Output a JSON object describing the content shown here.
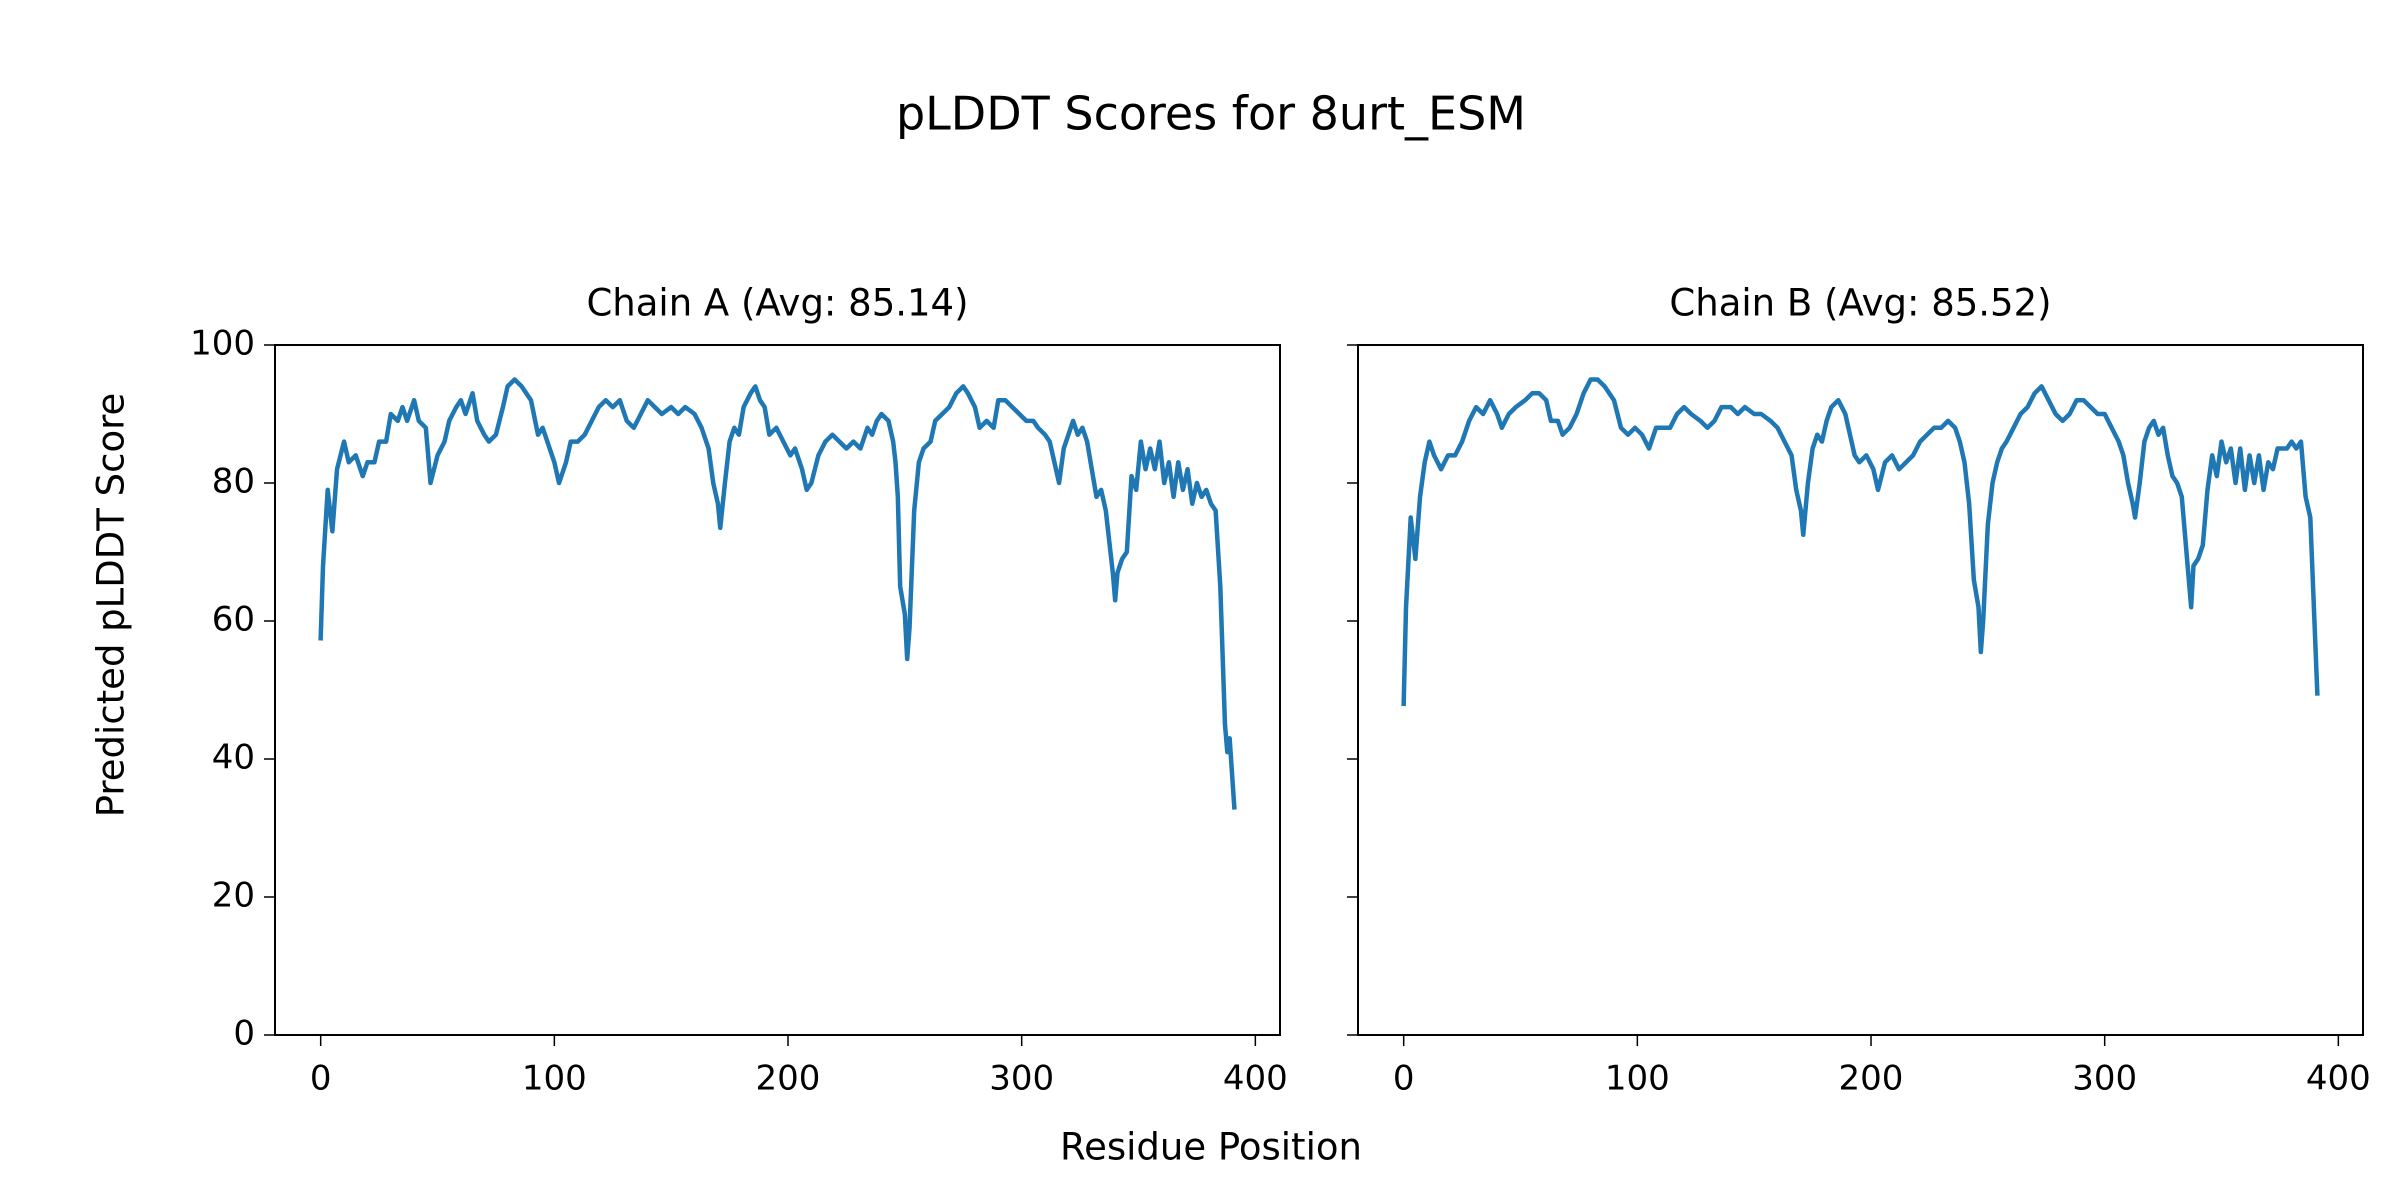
{
  "title": "pLDDT Scores for 8urt_ESM",
  "xlabel": "Residue Position",
  "ylabel": "Predicted pLDDT Score",
  "chart_data": [
    {
      "type": "line",
      "title": "Chain A (Avg: 85.14)",
      "color": "#1f77b4",
      "xlim": [
        -19.55,
        410.55
      ],
      "ylim": [
        0,
        100
      ],
      "xticks": [
        0,
        100,
        200,
        300,
        400
      ],
      "yticks": [
        0,
        20,
        40,
        60,
        80,
        100
      ],
      "ytick_labels": true,
      "x": [
        0,
        1,
        3,
        5,
        7,
        10,
        12,
        15,
        18,
        20,
        23,
        25,
        28,
        30,
        33,
        35,
        37,
        40,
        42,
        45,
        47,
        50,
        53,
        55,
        58,
        60,
        62,
        65,
        67,
        70,
        72,
        75,
        78,
        80,
        83,
        86,
        90,
        93,
        95,
        98,
        100,
        102,
        105,
        107,
        110,
        113,
        116,
        119,
        122,
        125,
        128,
        131,
        134,
        137,
        140,
        143,
        146,
        150,
        153,
        156,
        160,
        163,
        166,
        168,
        170,
        171,
        173,
        175,
        177,
        179,
        181,
        184,
        186,
        188,
        190,
        192,
        195,
        198,
        201,
        203,
        206,
        208,
        210,
        213,
        216,
        219,
        222,
        225,
        228,
        231,
        234,
        236,
        238,
        240,
        243,
        245,
        246,
        247,
        248,
        250,
        251,
        252,
        254,
        256,
        258,
        261,
        263,
        266,
        269,
        272,
        275,
        277,
        280,
        282,
        285,
        288,
        290,
        293,
        296,
        299,
        302,
        305,
        307,
        310,
        312,
        314,
        316,
        318,
        320,
        322,
        324,
        326,
        328,
        330,
        332,
        334,
        336,
        338,
        339,
        340,
        341,
        343,
        345,
        347,
        349,
        351,
        353,
        355,
        357,
        359,
        361,
        363,
        365,
        367,
        369,
        371,
        373,
        375,
        377,
        379,
        381,
        383,
        385,
        386,
        387,
        388,
        389,
        390,
        391
      ],
      "values": [
        57.5,
        68,
        79,
        73,
        82,
        86,
        83,
        84,
        81,
        83,
        83,
        86,
        86,
        90,
        89,
        91,
        89,
        92,
        89,
        88,
        80,
        84,
        86,
        89,
        91,
        92,
        90,
        93,
        89,
        87,
        86,
        87,
        91,
        94,
        95,
        94,
        92,
        87,
        88,
        85,
        83,
        80,
        83,
        86,
        86,
        87,
        89,
        91,
        92,
        91,
        92,
        89,
        88,
        90,
        92,
        91,
        90,
        91,
        90,
        91,
        90,
        88,
        85,
        80,
        77,
        73.5,
        80,
        86,
        88,
        87,
        91,
        93,
        94,
        92,
        91,
        87,
        88,
        86,
        84,
        85,
        82,
        79,
        80,
        84,
        86,
        87,
        86,
        85,
        86,
        85,
        88,
        87,
        89,
        90,
        89,
        86,
        83,
        78,
        65,
        61,
        54.5,
        59,
        76,
        83,
        85,
        86,
        89,
        90,
        91,
        93,
        94,
        93,
        91,
        88,
        89,
        88,
        92,
        92,
        91,
        90,
        89,
        89,
        88,
        87,
        86,
        83,
        80,
        85,
        87,
        89,
        87,
        88,
        86,
        82,
        78,
        79,
        76,
        70,
        67,
        63,
        67,
        69,
        70,
        81,
        79,
        86,
        82,
        85,
        82,
        86,
        80,
        83,
        78,
        83,
        79,
        82,
        77,
        80,
        78,
        79,
        77,
        76,
        65,
        55,
        45,
        41,
        43,
        38,
        33
      ]
    },
    {
      "type": "line",
      "title": "Chain B (Avg: 85.52)",
      "color": "#1f77b4",
      "xlim": [
        -19.55,
        410.55
      ],
      "ylim": [
        0,
        100
      ],
      "xticks": [
        0,
        100,
        200,
        300,
        400
      ],
      "yticks": [
        0,
        20,
        40,
        60,
        80,
        100
      ],
      "ytick_labels": false,
      "x": [
        0,
        1,
        3,
        5,
        7,
        9,
        11,
        13,
        16,
        19,
        22,
        25,
        28,
        31,
        34,
        37,
        40,
        42,
        45,
        48,
        52,
        55,
        58,
        61,
        63,
        66,
        68,
        71,
        74,
        77,
        80,
        83,
        86,
        90,
        93,
        96,
        99,
        102,
        105,
        108,
        111,
        114,
        117,
        120,
        123,
        127,
        130,
        133,
        136,
        140,
        143,
        146,
        150,
        153,
        157,
        160,
        163,
        166,
        168,
        170,
        171,
        173,
        175,
        177,
        179,
        181,
        183,
        186,
        189,
        191,
        193,
        195,
        198,
        201,
        203,
        206,
        209,
        212,
        215,
        218,
        221,
        224,
        227,
        230,
        233,
        236,
        238,
        240,
        242,
        244,
        246,
        247,
        248,
        250,
        252,
        254,
        256,
        258,
        261,
        264,
        267,
        270,
        273,
        276,
        279,
        282,
        285,
        288,
        291,
        294,
        297,
        300,
        303,
        306,
        308,
        310,
        312,
        313,
        315,
        317,
        319,
        321,
        323,
        325,
        327,
        329,
        331,
        333,
        335,
        336,
        337,
        338,
        340,
        342,
        344,
        346,
        348,
        350,
        352,
        354,
        356,
        358,
        360,
        362,
        364,
        366,
        368,
        370,
        372,
        374,
        376,
        378,
        380,
        382,
        384,
        386,
        388,
        391
      ],
      "values": [
        48,
        62,
        75,
        69,
        78,
        83,
        86,
        84,
        82,
        84,
        84,
        86,
        89,
        91,
        90,
        92,
        90,
        88,
        90,
        91,
        92,
        93,
        93,
        92,
        89,
        89,
        87,
        88,
        90,
        93,
        95,
        95,
        94,
        92,
        88,
        87,
        88,
        87,
        85,
        88,
        88,
        88,
        90,
        91,
        90,
        89,
        88,
        89,
        91,
        91,
        90,
        91,
        90,
        90,
        89,
        88,
        86,
        84,
        79,
        76,
        72.5,
        80,
        85,
        87,
        86,
        89,
        91,
        92,
        90,
        87,
        84,
        83,
        84,
        82,
        79,
        83,
        84,
        82,
        83,
        84,
        86,
        87,
        88,
        88,
        89,
        88,
        86,
        83,
        77,
        66,
        62,
        55.5,
        60,
        74,
        80,
        83,
        85,
        86,
        88,
        90,
        91,
        93,
        94,
        92,
        90,
        89,
        90,
        92,
        92,
        91,
        90,
        90,
        88,
        86,
        84,
        80,
        77,
        75,
        80,
        86,
        88,
        89,
        87,
        88,
        84,
        81,
        80,
        78,
        70,
        66,
        62,
        68,
        69,
        71,
        79,
        84,
        81,
        86,
        83,
        85,
        80,
        85,
        79,
        84,
        80,
        84,
        79,
        83,
        82,
        85,
        85,
        85,
        86,
        85,
        86,
        78,
        75,
        49.5
      ]
    }
  ]
}
